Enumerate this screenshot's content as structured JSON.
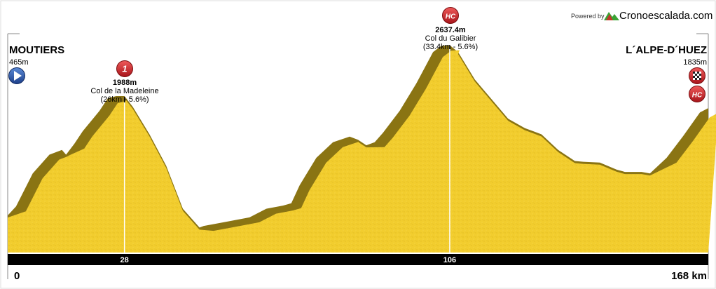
{
  "brand": {
    "powered_by": "Powered by",
    "name": "Cronoescalada.com",
    "logo_colors": [
      "#c0392b",
      "#3aa335"
    ]
  },
  "start": {
    "name": "MOUTIERS",
    "elevation": "465m",
    "km_label": "0",
    "icon": "start-arrow-icon",
    "icon_color": "#2a5db0"
  },
  "finish": {
    "name": "L´ALPE-D´HUEZ",
    "elevation": "1835m",
    "km_label": "168 km",
    "icons": [
      "checkered-flag-icon",
      "hc-category-icon"
    ]
  },
  "climbs": [
    {
      "category": "1",
      "altitude": "1988m",
      "name": "Col de la Madeleine",
      "detail": "(26km - 5.6%)",
      "km": 28,
      "km_label": "28",
      "badge_color": "#d42a2a"
    },
    {
      "category": "HC",
      "altitude": "2637.4m",
      "name": "Col du Galibier",
      "detail": "(33.4km - 5.6%)",
      "km": 106,
      "km_label": "106",
      "badge_color": "#d42a2a"
    }
  ],
  "colors": {
    "fill": "#f2cd2e",
    "shade": "#8a7413",
    "axis_bar": "#000000",
    "frame": "#888888"
  },
  "chart_data": {
    "type": "area",
    "title": "",
    "xlabel": "",
    "ylabel": "",
    "xlim": [
      0,
      168
    ],
    "ylim": [
      0,
      3000
    ],
    "x_ticks": [
      28,
      106
    ],
    "grid": false,
    "legend": "none",
    "series": [
      {
        "x": [
          0,
          2,
          6,
          10,
          13,
          14,
          16,
          18,
          22,
          24,
          26,
          28,
          30,
          34,
          38,
          42,
          46,
          47,
          52,
          58,
          62,
          66,
          68,
          70,
          74,
          78,
          82,
          84,
          86,
          88,
          90,
          94,
          98,
          100,
          102,
          104,
          106,
          108,
          112,
          116,
          120,
          124,
          128,
          132,
          136,
          138,
          142,
          146,
          150,
          148,
          152,
          154,
          158,
          162,
          166,
          168
        ],
        "y": [
          465,
          580,
          1000,
          1240,
          1300,
          1240,
          1380,
          1540,
          1800,
          1960,
          1988,
          1988,
          1850,
          1500,
          1100,
          550,
          310,
          330,
          380,
          440,
          550,
          590,
          620,
          850,
          1200,
          1400,
          1470,
          1430,
          1360,
          1400,
          1520,
          1800,
          2150,
          2350,
          2550,
          2630,
          2637,
          2550,
          2200,
          1950,
          1700,
          1580,
          1500,
          1300,
          1160,
          1150,
          1140,
          1050,
          1020,
          1020,
          1020,
          1000,
          1200,
          1480,
          1780,
          1835
        ]
      }
    ]
  }
}
